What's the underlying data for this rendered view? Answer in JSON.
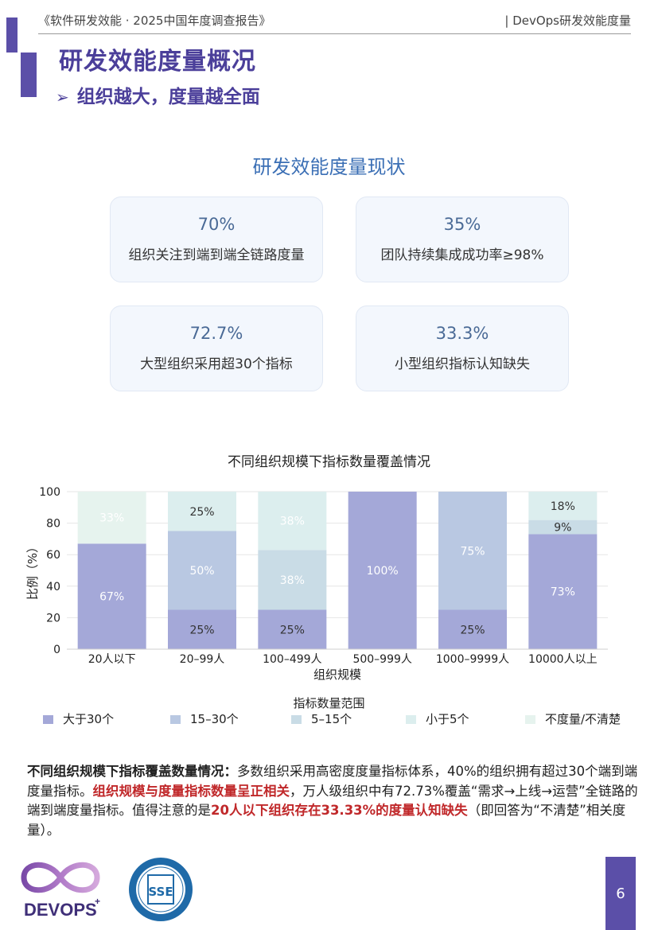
{
  "header": {
    "left": "《软件研发效能 · 2025中国年度调查报告》",
    "right": "| DevOps研发效能度量"
  },
  "title": "研发效能度量概况",
  "subtitle": {
    "arrow": "➢",
    "text": "组织越大，度量越全面"
  },
  "section_title": "研发效能度量现状",
  "cards": [
    {
      "value": "70%",
      "label": "组织关注到端到端全链路度量"
    },
    {
      "value": "35%",
      "label": "团队持续集成成功率≥98%"
    },
    {
      "value": "72.7%",
      "label": "大型组织采用超30个指标"
    },
    {
      "value": "33.3%",
      "label": "小型组织指标认知缺失"
    }
  ],
  "chart_data": {
    "type": "bar",
    "stacked": true,
    "title": "不同组织规模下指标数量覆盖情况",
    "xlabel": "组织规模",
    "ylabel": "比例（%）",
    "ylim": [
      0,
      100
    ],
    "yticks": [
      "0",
      "20",
      "40",
      "60",
      "80",
      "100"
    ],
    "grid": true,
    "categories": [
      "20人以下",
      "20–99人",
      "100–499人",
      "500–999人",
      "1000–9999人",
      "10000人以上"
    ],
    "legend_title": "指标数量范围",
    "legend_position": "bottom",
    "series": [
      {
        "name": "大于30个",
        "color": "#a4a8d8",
        "values": [
          67,
          25,
          25,
          100,
          25,
          73
        ],
        "labels": [
          "67%",
          "25%",
          "25%",
          "100%",
          "25%",
          "73%"
        ],
        "label_color": [
          "#ffffff",
          "#333333",
          "#333333",
          "#ffffff",
          "#333333",
          "#ffffff"
        ]
      },
      {
        "name": "15–30个",
        "color": "#b9c8e2",
        "values": [
          0,
          50,
          0,
          0,
          75,
          0
        ],
        "labels": [
          "",
          "50%",
          "",
          "",
          "75%",
          ""
        ],
        "label_color": [
          "#ffffff",
          "#ffffff",
          "#ffffff",
          "#ffffff",
          "#ffffff",
          "#ffffff"
        ]
      },
      {
        "name": "5–15个",
        "color": "#c9dce6",
        "values": [
          0,
          0,
          38,
          0,
          0,
          9
        ],
        "labels": [
          "",
          "",
          "38%",
          "",
          "",
          "9%"
        ],
        "label_color": [
          "#ffffff",
          "#ffffff",
          "#ffffff",
          "#ffffff",
          "#ffffff",
          "#333333"
        ]
      },
      {
        "name": "小于5个",
        "color": "#dceeee",
        "values": [
          0,
          25,
          38,
          0,
          0,
          18
        ],
        "labels": [
          "",
          "25%",
          "38%",
          "",
          "",
          "18%"
        ],
        "label_color": [
          "#ffffff",
          "#333333",
          "#ffffff",
          "#ffffff",
          "#ffffff",
          "#333333"
        ]
      },
      {
        "name": "不度量/不清楚",
        "color": "#e6f3ee",
        "values": [
          33,
          0,
          0,
          0,
          0,
          0
        ],
        "labels": [
          "33%",
          "",
          "",
          "",
          "",
          ""
        ],
        "label_color": [
          "#ffffff",
          "#ffffff",
          "#ffffff",
          "#ffffff",
          "#ffffff",
          "#ffffff"
        ]
      }
    ]
  },
  "paragraph": {
    "lead": "不同组织规模下指标覆盖数量情况：",
    "part1": "多数组织采用高密度度量指标体系，40%的组织拥有超过30个端到端度量指标。",
    "red1": "组织规模与度量指标数量呈正相关",
    "part2": "，万人级组织中有72.73%覆盖“需求→上线→运营”全链路的端到端度量指标。值得注意的是",
    "red2": "20人以下组织存在33.33%的度量认知缺失",
    "part3": "（即回答为“不清楚”相关度量）。"
  },
  "footer": {
    "logo_text": "DEVOPS",
    "logo_plus": "+",
    "seal_chars": "SSE",
    "page_number": "6"
  }
}
